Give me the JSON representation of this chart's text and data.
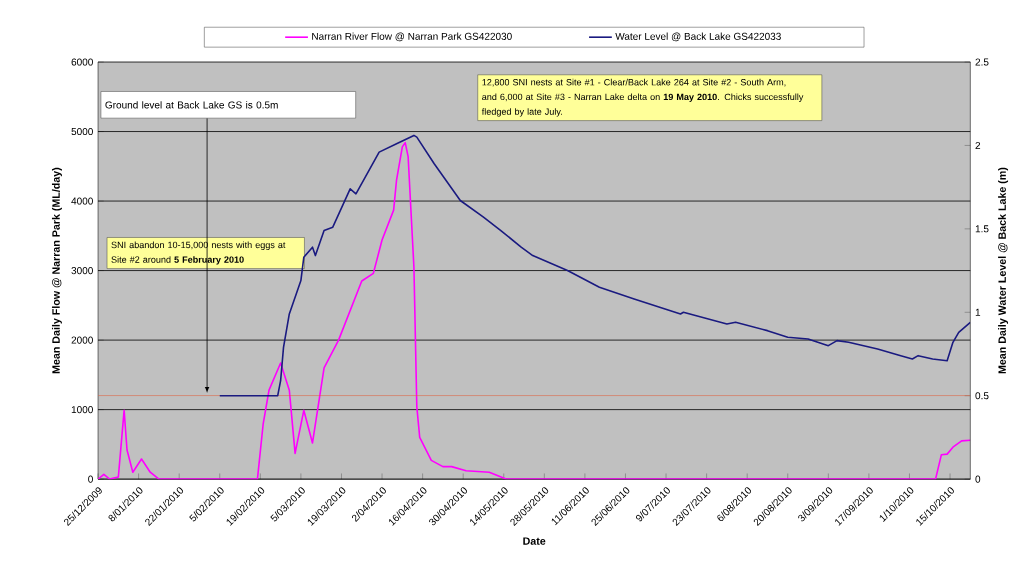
{
  "chart_data": {
    "type": "line",
    "xlabel": "Date",
    "ylabel": "Mean Daily Flow @ Narran Park (ML/day)",
    "y2label": "Mean Daily Water Level @ Back Lake (m)",
    "series": [
      {
        "name": "Narran River Flow @ Narran Park GS422030",
        "color": "#ff00ff",
        "x": [
          "2009-12-25",
          "2009-12-27",
          "2009-12-29",
          "2010-01-01",
          "2010-01-03",
          "2010-01-04",
          "2010-01-06",
          "2010-01-09",
          "2010-01-12",
          "2010-01-15",
          "2010-02-18",
          "2010-02-20",
          "2010-02-22",
          "2010-02-26",
          "2010-03-01",
          "2010-03-03",
          "2010-03-06",
          "2010-03-09",
          "2010-03-13",
          "2010-03-18",
          "2010-03-26",
          "2010-03-30",
          "2010-04-02",
          "2010-04-06",
          "2010-04-07",
          "2010-04-09",
          "2010-04-10",
          "2010-04-11",
          "2010-04-13",
          "2010-04-14",
          "2010-04-15",
          "2010-04-19",
          "2010-04-23",
          "2010-04-26",
          "2010-05-01",
          "2010-05-09",
          "2010-05-15",
          "2010-10-10",
          "2010-10-12",
          "2010-10-14",
          "2010-10-16",
          "2010-10-19",
          "2010-10-22"
        ],
        "values": [
          0,
          70,
          0,
          30,
          990,
          420,
          100,
          290,
          100,
          0,
          0,
          800,
          1280,
          1670,
          1280,
          370,
          990,
          520,
          1600,
          2000,
          2850,
          2960,
          3440,
          3870,
          4300,
          4780,
          4840,
          4640,
          3050,
          1040,
          600,
          270,
          180,
          180,
          120,
          100,
          0,
          0,
          350,
          360,
          460,
          550,
          560
        ]
      },
      {
        "name": "Water Level @ Back Lake GS422033",
        "color": "#1a1a80",
        "axis": "y2",
        "x": [
          "2010-02-05",
          "2010-02-25",
          "2010-02-26",
          "2010-02-27",
          "2010-03-01",
          "2010-03-05",
          "2010-03-06",
          "2010-03-09",
          "2010-03-10",
          "2010-03-13",
          "2010-03-16",
          "2010-03-22",
          "2010-03-24",
          "2010-04-01",
          "2010-04-07",
          "2010-04-13",
          "2010-04-14",
          "2010-04-20",
          "2010-04-29",
          "2010-05-07",
          "2010-05-13",
          "2010-05-20",
          "2010-05-24",
          "2010-06-05",
          "2010-06-16",
          "2010-06-28",
          "2010-07-14",
          "2010-07-15",
          "2010-07-30",
          "2010-08-02",
          "2010-08-13",
          "2010-08-20",
          "2010-08-27",
          "2010-09-03",
          "2010-09-06",
          "2010-09-10",
          "2010-09-20",
          "2010-09-28",
          "2010-10-02",
          "2010-10-04",
          "2010-10-09",
          "2010-10-14",
          "2010-10-16",
          "2010-10-18",
          "2010-10-22"
        ],
        "values": [
          0.5,
          0.5,
          0.59,
          0.79,
          0.99,
          1.19,
          1.33,
          1.39,
          1.34,
          1.49,
          1.51,
          1.74,
          1.71,
          1.96,
          2.01,
          2.06,
          2.05,
          1.89,
          1.67,
          1.57,
          1.49,
          1.39,
          1.34,
          1.25,
          1.15,
          1.08,
          0.99,
          1.0,
          0.93,
          0.94,
          0.89,
          0.85,
          0.84,
          0.8,
          0.83,
          0.82,
          0.78,
          0.74,
          0.72,
          0.74,
          0.72,
          0.71,
          0.82,
          0.88,
          0.94
        ]
      }
    ],
    "xlim": [
      "2009-12-25",
      "2010-10-22"
    ],
    "xticks": [
      {
        "value": "2009-12-25",
        "label": "25/12/2009"
      },
      {
        "value": "2010-01-08",
        "label": "8/01/2010"
      },
      {
        "value": "2010-01-22",
        "label": "22/01/2010"
      },
      {
        "value": "2010-02-05",
        "label": "5/02/2010"
      },
      {
        "value": "2010-02-19",
        "label": "19/02/2010"
      },
      {
        "value": "2010-03-05",
        "label": "5/03/2010"
      },
      {
        "value": "2010-03-19",
        "label": "19/03/2010"
      },
      {
        "value": "2010-04-02",
        "label": "2/04/2010"
      },
      {
        "value": "2010-04-16",
        "label": "16/04/2010"
      },
      {
        "value": "2010-04-30",
        "label": "30/04/2010"
      },
      {
        "value": "2010-05-14",
        "label": "14/05/2010"
      },
      {
        "value": "2010-05-28",
        "label": "28/05/2010"
      },
      {
        "value": "2010-06-11",
        "label": "11/06/2010"
      },
      {
        "value": "2010-06-25",
        "label": "25/06/2010"
      },
      {
        "value": "2010-07-09",
        "label": "9/07/2010"
      },
      {
        "value": "2010-07-23",
        "label": "23/07/2010"
      },
      {
        "value": "2010-08-06",
        "label": "6/08/2010"
      },
      {
        "value": "2010-08-20",
        "label": "20/08/2010"
      },
      {
        "value": "2010-09-03",
        "label": "3/09/2010"
      },
      {
        "value": "2010-09-17",
        "label": "17/09/2010"
      },
      {
        "value": "2010-10-01",
        "label": "1/10/2010"
      },
      {
        "value": "2010-10-15",
        "label": "15/10/2010"
      }
    ],
    "ylim": [
      0,
      6000
    ],
    "yticks": [
      0,
      1000,
      2000,
      3000,
      4000,
      5000,
      6000
    ],
    "y2lim": [
      0,
      2.5
    ],
    "y2ticks": [
      0,
      0.5,
      1,
      1.5,
      2,
      2.5
    ],
    "ref_lines": [
      {
        "axis": "y2",
        "value": 0.5,
        "label": "Ground level at Back Lake GS is 0.5m",
        "color": "#e06040"
      }
    ],
    "annotations": [
      "SNI abandon 10-15,000 nests with eggs at Site #2 around **5 February 2010**",
      "12,800 SNI nests at Site #1 - Clear/Back Lake 264 at Site #2 - South Arm, and 6,000 at Site #3 - Narran Lake delta on **19 May 2010**.  Chicks successfully fledged by late July."
    ],
    "grid": "y",
    "legend": "top"
  }
}
